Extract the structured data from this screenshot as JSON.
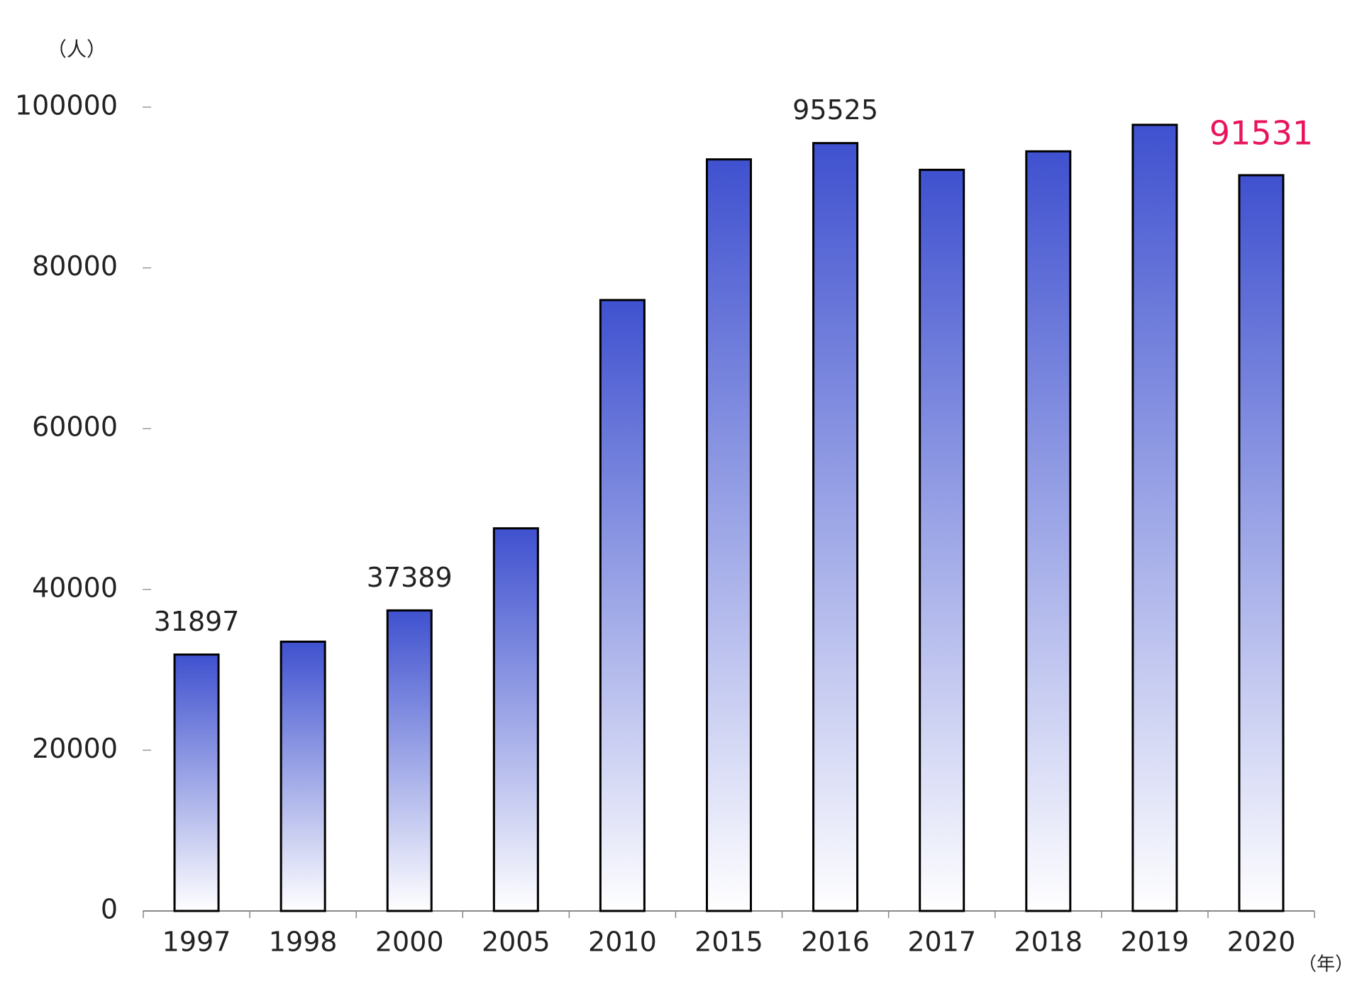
{
  "chart_data": {
    "type": "bar",
    "y_unit_label": "（人）",
    "x_unit_label": "（年）",
    "categories": [
      "1997",
      "1998",
      "2000",
      "2005",
      "2010",
      "2015",
      "2016",
      "2017",
      "2018",
      "2019",
      "2020"
    ],
    "values": [
      31897,
      33500,
      37389,
      47600,
      76000,
      93500,
      95525,
      92200,
      94500,
      97800,
      91531
    ],
    "value_labels": [
      "31897",
      null,
      "37389",
      null,
      null,
      null,
      "95525",
      null,
      null,
      null,
      "91531"
    ],
    "value_label_colors": [
      "#222222",
      null,
      "#222222",
      null,
      null,
      null,
      "#222222",
      null,
      null,
      null,
      "#e8155e"
    ],
    "color": "#3f51cf",
    "ylim": [
      0,
      100000
    ],
    "yticks": [
      0,
      20000,
      40000,
      60000,
      80000,
      100000
    ]
  }
}
